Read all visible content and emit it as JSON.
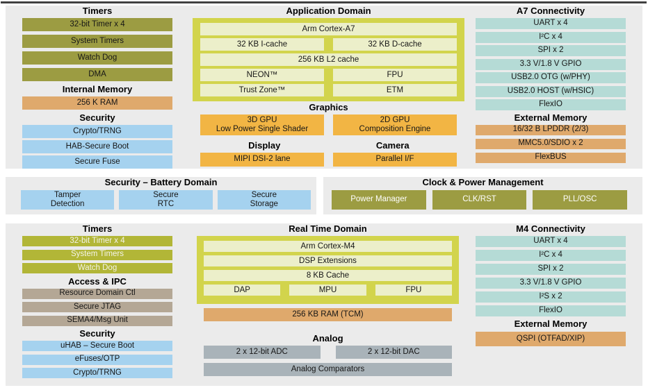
{
  "palette": {
    "olive": {
      "bg": "#9C9C42",
      "fg": "#161616"
    },
    "olive_white": {
      "bg": "#9C9C42",
      "fg": "#FFFFFF"
    },
    "lime_white": {
      "bg": "#B2B637",
      "fg": "#F4F4E9"
    },
    "tan": {
      "bg": "#DFA96C",
      "fg": "#161616"
    },
    "blue": {
      "bg": "#A5D2EF",
      "fg": "#161616"
    },
    "teal": {
      "bg": "#B5DBD6",
      "fg": "#161616"
    },
    "amber": {
      "bg": "#F2B544",
      "fg": "#161616"
    },
    "taupe": {
      "bg": "#B4A795",
      "fg": "#161616"
    },
    "gray": {
      "bg": "#A9B3B9",
      "fg": "#161616"
    },
    "domain_container": "#D2D44C",
    "domain_cell_bg": "#ECEFCA",
    "domain_cell_fg": "#161616",
    "panel_bg": "#EBEBEB",
    "page_bg": "#FFFFFF",
    "top_rule": "#414141"
  },
  "top": {
    "left_column": {
      "groups": [
        {
          "title": "Timers",
          "boxes": [
            {
              "label": "32-bit Timer x 4",
              "style": "olive"
            },
            {
              "label": "System Timers",
              "style": "olive"
            },
            {
              "label": "Watch Dog",
              "style": "olive"
            },
            {
              "label": "DMA",
              "style": "olive"
            }
          ]
        },
        {
          "title": "Internal Memory",
          "boxes": [
            {
              "label": "256 K RAM",
              "style": "tan"
            }
          ]
        },
        {
          "title": "Security",
          "boxes": [
            {
              "label": "Crypto/TRNG",
              "style": "blue"
            },
            {
              "label": "HAB-Secure Boot",
              "style": "blue"
            },
            {
              "label": "Secure Fuse",
              "style": "blue"
            }
          ]
        }
      ]
    },
    "center_column": {
      "sections": [
        {
          "type": "title",
          "text": "Application Domain"
        },
        {
          "type": "domain",
          "rows": [
            {
              "cells": [
                {
                  "label": "Arm Cortex-A7"
                }
              ]
            },
            {
              "cells": [
                {
                  "label": "32 KB I-cache"
                },
                {
                  "label": "32 KB D-cache"
                }
              ]
            },
            {
              "cells": [
                {
                  "label": "256 KB L2 cache"
                }
              ]
            },
            {
              "cells": [
                {
                  "label": "NEON™"
                },
                {
                  "label": "FPU"
                }
              ]
            },
            {
              "cells": [
                {
                  "label": "Trust Zone™"
                },
                {
                  "label": "ETM"
                }
              ]
            }
          ]
        },
        {
          "type": "title",
          "text": "Graphics"
        },
        {
          "type": "row",
          "tall": true,
          "boxes": [
            {
              "label": "3D GPU\nLow Power Single Shader",
              "style": "amber"
            },
            {
              "label": "2D GPU\nComposition Engine",
              "style": "amber"
            }
          ]
        },
        {
          "type": "title2",
          "left": "Display",
          "right": "Camera"
        },
        {
          "type": "row",
          "boxes": [
            {
              "label": "MIPI DSI-2 lane",
              "style": "amber"
            },
            {
              "label": "Parallel I/F",
              "style": "amber"
            }
          ]
        }
      ]
    },
    "right_column": {
      "groups": [
        {
          "title": "A7 Connectivity",
          "boxes": [
            {
              "label": "UART x 4",
              "style": "teal"
            },
            {
              "label": "I²C x 4",
              "style": "teal"
            },
            {
              "label": "SPI x 2",
              "style": "teal"
            },
            {
              "label": "3.3 V/1.8 V GPIO",
              "style": "teal"
            },
            {
              "label": "USB2.0 OTG (w/PHY)",
              "style": "teal"
            },
            {
              "label": "USB2.0 HOST (w/HSIC)",
              "style": "teal"
            },
            {
              "label": "FlexIO",
              "style": "teal"
            }
          ]
        },
        {
          "title": "External Memory",
          "boxes": [
            {
              "label": "16/32 B LPDDR (2/3)",
              "style": "tan"
            },
            {
              "label": "MMC5.0/SDIO x 2",
              "style": "tan"
            },
            {
              "label": "FlexBUS",
              "style": "tan"
            }
          ]
        }
      ]
    }
  },
  "middle": {
    "battery": {
      "title": "Security – Battery Domain",
      "boxes": [
        {
          "label": "Tamper\nDetection",
          "style": "blue"
        },
        {
          "label": "Secure\nRTC",
          "style": "blue"
        },
        {
          "label": "Secure\nStorage",
          "style": "blue"
        }
      ]
    },
    "clock": {
      "title": "Clock & Power Management",
      "boxes": [
        {
          "label": "Power Manager",
          "style": "olive_white"
        },
        {
          "label": "CLK/RST",
          "style": "olive_white"
        },
        {
          "label": "PLL/OSC",
          "style": "olive_white"
        }
      ]
    }
  },
  "bottom": {
    "left_column": {
      "groups": [
        {
          "title": "Timers",
          "boxes": [
            {
              "label": "32-bit Timer x 4",
              "style": "lime_white"
            },
            {
              "label": "System Timers",
              "style": "lime_white"
            },
            {
              "label": "Watch Dog",
              "style": "lime_white"
            }
          ]
        },
        {
          "title": "Access & IPC",
          "boxes": [
            {
              "label": "Resource Domain Ctl",
              "style": "taupe"
            },
            {
              "label": "Secure JTAG",
              "style": "taupe"
            },
            {
              "label": "SEMA4/Msg Unit",
              "style": "taupe"
            }
          ]
        },
        {
          "title": "Security",
          "boxes": [
            {
              "label": "uHAB – Secure Boot",
              "style": "blue"
            },
            {
              "label": "eFuses/OTP",
              "style": "blue"
            },
            {
              "label": "Crypto/TRNG",
              "style": "blue"
            }
          ]
        }
      ]
    },
    "center_column": {
      "sections": [
        {
          "type": "title",
          "text": "Real Time Domain"
        },
        {
          "type": "domain",
          "rows": [
            {
              "cells": [
                {
                  "label": "Arm Cortex-M4"
                }
              ]
            },
            {
              "cells": [
                {
                  "label": "DSP Extensions"
                }
              ]
            },
            {
              "cells": [
                {
                  "label": "8 KB Cache"
                }
              ]
            },
            {
              "cells": [
                {
                  "label": "DAP"
                },
                {
                  "label": "MPU"
                },
                {
                  "label": "FPU"
                }
              ]
            }
          ]
        },
        {
          "type": "row",
          "ram": true,
          "boxes": [
            {
              "label": "256 KB RAM (TCM)",
              "style": "tan"
            }
          ]
        },
        {
          "type": "title",
          "text": "Analog"
        },
        {
          "type": "row",
          "boxes": [
            {
              "label": "2 x 12-bit ADC",
              "style": "gray"
            },
            {
              "label": "2 x 12-bit DAC",
              "style": "gray"
            }
          ]
        },
        {
          "type": "row",
          "boxes": [
            {
              "label": "Analog Comparators",
              "style": "gray"
            }
          ]
        }
      ]
    },
    "right_column": {
      "groups": [
        {
          "title": "M4 Connectivity",
          "boxes": [
            {
              "label": "UART x 4",
              "style": "teal"
            },
            {
              "label": "I²C x 4",
              "style": "teal"
            },
            {
              "label": "SPI x 2",
              "style": "teal"
            },
            {
              "label": "3.3 V/1.8 V GPIO",
              "style": "teal"
            },
            {
              "label": "I²S x 2",
              "style": "teal"
            },
            {
              "label": "FlexIO",
              "style": "teal"
            }
          ]
        },
        {
          "title": "External Memory",
          "boxes": [
            {
              "label": "QSPI (OTFAD/XIP)",
              "style": "tan"
            }
          ]
        }
      ]
    }
  }
}
